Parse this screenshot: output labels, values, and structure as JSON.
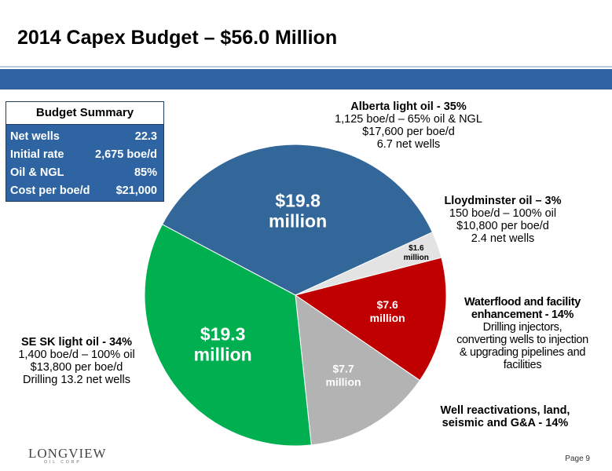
{
  "title": "2014 Capex Budget – $56.0 Million",
  "summary": {
    "heading": "Budget Summary",
    "rows": [
      {
        "label": "Net wells",
        "value": "22.3"
      },
      {
        "label": "Initial rate",
        "value": "2,675 boe/d"
      },
      {
        "label": "Oil & NGL",
        "value": "85%"
      },
      {
        "label": "Cost per boe/d",
        "value": "$21,000"
      }
    ]
  },
  "labels": {
    "alberta": {
      "name": "Alberta light oil - 35%",
      "lines": [
        "1,125 boe/d – 65% oil & NGL",
        "$17,600 per boe/d",
        "6.7 net wells"
      ]
    },
    "lloyd": {
      "name": "Lloydminster oil – 3%",
      "lines": [
        "150 boe/d – 100% oil",
        "$10,800 per boe/d",
        "2.4 net wells"
      ]
    },
    "waterflood": {
      "name1": "Waterflood and facility",
      "name2": "enhancement - 14%",
      "lines": [
        "Drilling injectors,",
        "converting wells to injection",
        "& upgrading pipelines and",
        "facilities"
      ]
    },
    "reactivations": {
      "name1": "Well reactivations, land,",
      "name2": "seismic and G&A - 14%"
    },
    "sesk": {
      "name": "SE SK light oil - 34%",
      "lines": [
        "1,400 boe/d – 100% oil",
        "$13,800 per boe/d",
        "Drilling 13.2 net wells"
      ]
    }
  },
  "chart_data": {
    "type": "pie",
    "slices": [
      {
        "name": "Alberta light oil",
        "value": 19.8,
        "label": [
          "$19.8",
          "million"
        ],
        "color": "#336699"
      },
      {
        "name": "Lloydminster oil",
        "value": 1.6,
        "label": [
          "$1.6",
          "million"
        ],
        "color": "#e3e3e3"
      },
      {
        "name": "Waterflood and facility enhancement",
        "value": 7.6,
        "label": [
          "$7.6",
          "million"
        ],
        "color": "#c00000"
      },
      {
        "name": "Well reactivations, land, seismic and G&A",
        "value": 7.7,
        "label": [
          "$7.7",
          "million"
        ],
        "color": "#b3b3b3"
      },
      {
        "name": "SE SK light oil",
        "value": 19.3,
        "label": [
          "$19.3",
          "million"
        ],
        "color": "#00b050"
      }
    ]
  },
  "footer": {
    "logo": "LONGVIEW",
    "logo_sub": "OIL CORP",
    "page": "Page 9"
  }
}
